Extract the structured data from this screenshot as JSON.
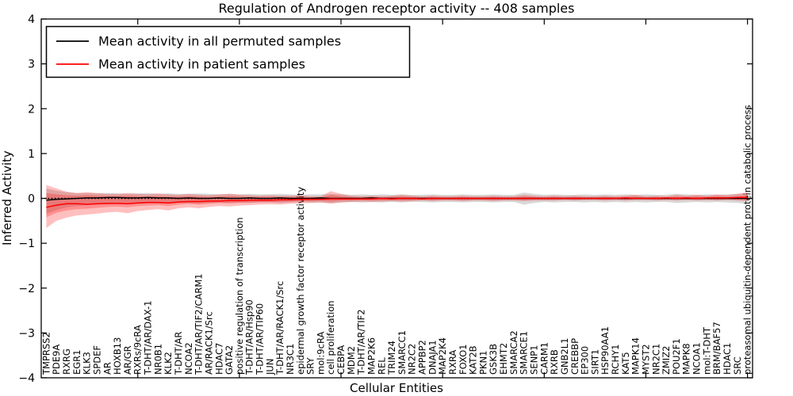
{
  "chart_data": {
    "type": "line",
    "title": "Regulation of Androgen receptor activity -- 408 samples",
    "xlabel": "Cellular Entities",
    "ylabel": "Inferred Activity",
    "ylim": [
      -4,
      4
    ],
    "yticks": [
      "4",
      "3",
      "2",
      "1",
      "0",
      "−1",
      "−2",
      "−3",
      "−4"
    ],
    "ytick_values": [
      4,
      3,
      2,
      1,
      0,
      -1,
      -2,
      -3,
      -4
    ],
    "grid": false,
    "legend_position": "upper left",
    "zero_line": {
      "value": 0,
      "style": "dotted",
      "color": "#000000"
    },
    "categories": [
      "TMPRSS2",
      "PDE9A",
      "RXRG",
      "EGR1",
      "KLK3",
      "SPDEF",
      "AR",
      "HOXB13",
      "AR/GR",
      "RXRs/9cRA",
      "T-DHT/AR/DAX-1",
      "NR0B1",
      "KLK2",
      "T-DHT/AR",
      "NCOA2",
      "T-DHT/AR/TIF2/CARM1",
      "AR/RACK1/Src",
      "HDAC7",
      "GATA2",
      "positive regulation of transcription",
      "T-DHT/AR/Hsp90",
      "T-DHT/AR/TIP60",
      "JUN",
      "T-DHT/AR/RACK1/Src",
      "NR3C1",
      "epidermal growth factor receptor activity",
      "SRY",
      "mol:9cRA",
      "cell proliferation",
      "CEBPA",
      "MDM2",
      "T-DHT/AR/TIF2",
      "MAP2K6",
      "REL",
      "TRIM24",
      "SMARCC1",
      "NR2C2",
      "APPBP2",
      "DNAJA1",
      "MAP2K4",
      "RXRA",
      "FOXO1",
      "KAT2B",
      "PKN1",
      "GSK3B",
      "EHMT2",
      "SMARCA2",
      "SMARCE1",
      "SENP1",
      "CARM1",
      "RXRB",
      "GNB2L1",
      "CREBBP",
      "EP300",
      "SIRT1",
      "HSP90AA1",
      "RCHY1",
      "KAT5",
      "MAPK14",
      "MYST2",
      "NR2C1",
      "ZMIZ2",
      "POU2F1",
      "MAPK8",
      "NCOA1",
      "mol:T-DHT",
      "BRM/BAF57",
      "HDAC1",
      "SRC",
      "proteasomal ubiquitin-dependent protein catabolic process"
    ],
    "series": [
      {
        "name": "Mean activity in all permuted samples",
        "color": "#000000",
        "values": [
          -0.04,
          -0.02,
          -0.01,
          0.0,
          0.01,
          0.01,
          0.02,
          0.02,
          0.01,
          0.01,
          0.02,
          0.01,
          0.01,
          0.0,
          0.01,
          0.0,
          0.0,
          0.01,
          0.0,
          0.0,
          0.01,
          0.0,
          0.0,
          0.01,
          0.0,
          0.0,
          0.0,
          0.01,
          0.0,
          0.0,
          0.0,
          0.0,
          0.01,
          0.0,
          0.0,
          0.0,
          0.0,
          0.0,
          0.0,
          0.0,
          0.0,
          0.0,
          0.0,
          0.0,
          0.0,
          0.0,
          0.0,
          0.0,
          0.0,
          0.0,
          0.0,
          0.0,
          0.0,
          0.0,
          0.0,
          0.0,
          0.0,
          0.0,
          0.0,
          0.0,
          0.0,
          0.0,
          0.0,
          0.0,
          0.0,
          0.0,
          0.0,
          0.0,
          0.0,
          0.0
        ]
      },
      {
        "name": "Mean activity in patient samples",
        "color": "#ff0000",
        "values": [
          -0.2,
          -0.15,
          -0.12,
          -0.12,
          -0.13,
          -0.12,
          -0.11,
          -0.11,
          -0.12,
          -0.1,
          -0.09,
          -0.09,
          -0.1,
          -0.08,
          -0.07,
          -0.07,
          -0.06,
          -0.06,
          -0.05,
          -0.05,
          -0.04,
          -0.04,
          -0.04,
          -0.03,
          -0.03,
          -0.02,
          -0.02,
          -0.02,
          -0.01,
          -0.01,
          -0.01,
          -0.01,
          -0.01,
          0.0,
          -0.01,
          0.0,
          0.0,
          -0.01,
          0.0,
          0.0,
          0.0,
          0.0,
          0.0,
          0.0,
          0.0,
          0.0,
          0.0,
          0.0,
          0.0,
          0.0,
          0.0,
          0.0,
          0.0,
          0.0,
          0.0,
          0.0,
          0.0,
          0.01,
          0.0,
          0.0,
          0.0,
          0.01,
          0.0,
          0.01,
          0.0,
          0.01,
          0.01,
          0.01,
          0.02,
          0.02
        ]
      }
    ],
    "bands": [
      {
        "name": "permuted-samples-std-band",
        "color": "rgba(100,100,100,0.25)",
        "upper": [
          0.22,
          0.17,
          0.14,
          0.12,
          0.12,
          0.11,
          0.12,
          0.11,
          0.1,
          0.11,
          0.12,
          0.1,
          0.11,
          0.1,
          0.1,
          0.11,
          0.1,
          0.09,
          0.1,
          0.09,
          0.1,
          0.09,
          0.09,
          0.1,
          0.09,
          0.08,
          0.09,
          0.09,
          0.1,
          0.09,
          0.08,
          0.09,
          0.08,
          0.09,
          0.08,
          0.09,
          0.08,
          0.08,
          0.09,
          0.08,
          0.08,
          0.09,
          0.08,
          0.08,
          0.09,
          0.08,
          0.08,
          0.13,
          0.1,
          0.08,
          0.09,
          0.08,
          0.08,
          0.09,
          0.08,
          0.09,
          0.08,
          0.09,
          0.08,
          0.09,
          0.08,
          0.08,
          0.1,
          0.09,
          0.08,
          0.09,
          0.08,
          0.09,
          0.1,
          0.12
        ],
        "lower": [
          -0.34,
          -0.26,
          -0.2,
          -0.17,
          -0.15,
          -0.14,
          -0.13,
          -0.12,
          -0.13,
          -0.12,
          -0.11,
          -0.11,
          -0.12,
          -0.1,
          -0.1,
          -0.11,
          -0.1,
          -0.09,
          -0.1,
          -0.09,
          -0.1,
          -0.09,
          -0.09,
          -0.1,
          -0.09,
          -0.08,
          -0.09,
          -0.09,
          -0.1,
          -0.09,
          -0.08,
          -0.09,
          -0.08,
          -0.09,
          -0.08,
          -0.09,
          -0.08,
          -0.08,
          -0.09,
          -0.08,
          -0.08,
          -0.09,
          -0.08,
          -0.08,
          -0.09,
          -0.08,
          -0.08,
          -0.14,
          -0.1,
          -0.08,
          -0.09,
          -0.08,
          -0.08,
          -0.09,
          -0.08,
          -0.09,
          -0.08,
          -0.09,
          -0.08,
          -0.09,
          -0.08,
          -0.08,
          -0.1,
          -0.09,
          -0.08,
          -0.09,
          -0.08,
          -0.09,
          -0.1,
          -0.12
        ]
      },
      {
        "name": "patient-samples-outer-band",
        "color": "rgba(255,0,0,0.25)",
        "upper": [
          0.3,
          0.22,
          0.15,
          0.12,
          0.14,
          0.12,
          0.1,
          0.1,
          0.12,
          0.1,
          0.09,
          0.11,
          0.09,
          0.08,
          0.1,
          0.08,
          0.07,
          0.09,
          0.1,
          0.08,
          0.07,
          0.06,
          0.07,
          0.06,
          0.06,
          0.07,
          0.05,
          0.05,
          0.16,
          0.1,
          0.06,
          0.05,
          0.06,
          0.05,
          0.06,
          0.08,
          0.06,
          0.05,
          0.06,
          0.05,
          0.05,
          0.06,
          0.05,
          0.05,
          0.06,
          0.05,
          0.05,
          0.08,
          0.06,
          0.05,
          0.06,
          0.05,
          0.06,
          0.05,
          0.05,
          0.06,
          0.05,
          0.06,
          0.08,
          0.05,
          0.06,
          0.05,
          0.08,
          0.06,
          0.08,
          0.06,
          0.09,
          0.07,
          0.1,
          0.13
        ],
        "lower": [
          -0.66,
          -0.5,
          -0.43,
          -0.38,
          -0.36,
          -0.34,
          -0.31,
          -0.3,
          -0.33,
          -0.28,
          -0.26,
          -0.24,
          -0.27,
          -0.22,
          -0.2,
          -0.22,
          -0.19,
          -0.17,
          -0.18,
          -0.16,
          -0.15,
          -0.14,
          -0.13,
          -0.14,
          -0.12,
          -0.11,
          -0.1,
          -0.09,
          -0.12,
          -0.09,
          -0.08,
          -0.07,
          -0.08,
          -0.07,
          -0.06,
          -0.07,
          -0.06,
          -0.05,
          -0.06,
          -0.05,
          -0.05,
          -0.06,
          -0.05,
          -0.05,
          -0.06,
          -0.05,
          -0.05,
          -0.06,
          -0.05,
          -0.05,
          -0.05,
          -0.04,
          -0.05,
          -0.04,
          -0.04,
          -0.05,
          -0.04,
          -0.05,
          -0.04,
          -0.04,
          -0.05,
          -0.04,
          -0.05,
          -0.04,
          -0.05,
          -0.04,
          -0.05,
          -0.04,
          -0.05,
          -0.06
        ]
      },
      {
        "name": "patient-samples-inner-band",
        "color": "rgba(255,0,0,0.25)",
        "upper": [
          0.12,
          0.09,
          0.07,
          0.06,
          0.07,
          0.06,
          0.05,
          0.05,
          0.06,
          0.05,
          0.04,
          0.05,
          0.04,
          0.04,
          0.05,
          0.04,
          0.03,
          0.04,
          0.05,
          0.04,
          0.03,
          0.03,
          0.03,
          0.03,
          0.03,
          0.03,
          0.02,
          0.02,
          0.08,
          0.05,
          0.03,
          0.02,
          0.03,
          0.02,
          0.03,
          0.04,
          0.03,
          0.02,
          0.03,
          0.02,
          0.02,
          0.03,
          0.02,
          0.02,
          0.03,
          0.02,
          0.02,
          0.04,
          0.03,
          0.02,
          0.03,
          0.02,
          0.03,
          0.02,
          0.02,
          0.03,
          0.02,
          0.03,
          0.04,
          0.02,
          0.03,
          0.02,
          0.04,
          0.03,
          0.04,
          0.03,
          0.05,
          0.04,
          0.05,
          0.07
        ],
        "lower": [
          -0.42,
          -0.32,
          -0.27,
          -0.24,
          -0.23,
          -0.21,
          -0.19,
          -0.18,
          -0.2,
          -0.17,
          -0.16,
          -0.15,
          -0.17,
          -0.14,
          -0.12,
          -0.14,
          -0.12,
          -0.1,
          -0.11,
          -0.1,
          -0.09,
          -0.08,
          -0.08,
          -0.08,
          -0.07,
          -0.06,
          -0.06,
          -0.05,
          -0.07,
          -0.05,
          -0.05,
          -0.04,
          -0.05,
          -0.04,
          -0.04,
          -0.04,
          -0.04,
          -0.03,
          -0.04,
          -0.03,
          -0.03,
          -0.04,
          -0.03,
          -0.03,
          -0.04,
          -0.03,
          -0.03,
          -0.04,
          -0.03,
          -0.03,
          -0.03,
          -0.02,
          -0.03,
          -0.02,
          -0.02,
          -0.03,
          -0.02,
          -0.03,
          -0.02,
          -0.02,
          -0.03,
          -0.02,
          -0.03,
          -0.02,
          -0.03,
          -0.02,
          -0.03,
          -0.02,
          -0.03,
          -0.04
        ]
      }
    ],
    "legend": {
      "items": [
        {
          "label": "Mean activity in all permuted samples",
          "color": "#000000"
        },
        {
          "label": "Mean activity in patient samples",
          "color": "#ff0000"
        }
      ]
    }
  }
}
